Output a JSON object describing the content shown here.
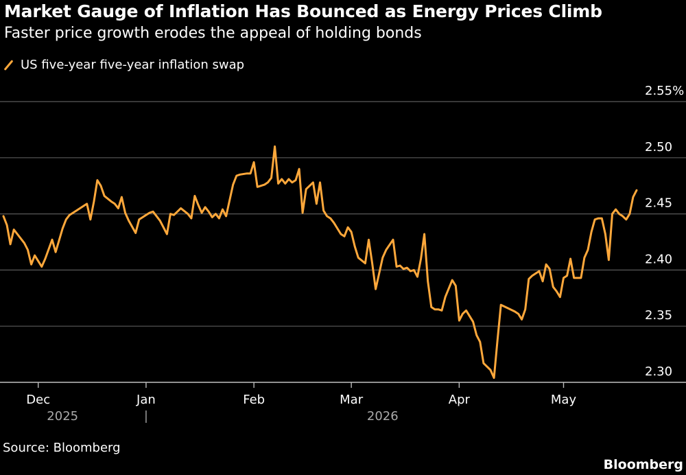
{
  "header": {
    "title": "Market Gauge of Inflation Has Bounced as Energy Prices Climb",
    "subtitle": "Faster price growth erodes the appeal of holding bonds"
  },
  "footer": {
    "source": "Source: Bloomberg",
    "brand": "Bloomberg"
  },
  "chart_data": {
    "type": "line",
    "legend_position": "top-left",
    "grid": true,
    "colors": {
      "line": "#FFA83B",
      "grid": "#5a5a5a",
      "background": "#000000"
    },
    "ylim": [
      2.3,
      2.55
    ],
    "y_ticks": [
      "2.30",
      "2.35",
      "2.40",
      "2.45",
      "2.50",
      "2.55%"
    ],
    "y_tick_values": [
      2.3,
      2.35,
      2.4,
      2.45,
      2.5,
      2.55
    ],
    "x_range": [
      "2025-11-21",
      "2026-05-22"
    ],
    "x_ticks": [
      {
        "label": "Dec",
        "date": "2025-12-01"
      },
      {
        "label": "Jan",
        "date": "2026-01-01"
      },
      {
        "label": "Feb",
        "date": "2026-02-01"
      },
      {
        "label": "Mar",
        "date": "2026-03-01"
      },
      {
        "label": "Apr",
        "date": "2026-04-01"
      },
      {
        "label": "May",
        "date": "2026-05-01"
      }
    ],
    "years": [
      {
        "label": "2025",
        "date": "2025-12-08"
      },
      {
        "label": "2026",
        "date": "2026-03-10"
      }
    ],
    "year_divider_date": "2026-01-01",
    "series": [
      {
        "name": "US five-year five-year inflation swap",
        "points": [
          [
            "2025-11-21",
            2.448
          ],
          [
            "2025-11-22",
            2.44
          ],
          [
            "2025-11-23",
            2.423
          ],
          [
            "2025-11-24",
            2.436
          ],
          [
            "2025-11-27",
            2.424
          ],
          [
            "2025-11-28",
            2.418
          ],
          [
            "2025-11-29",
            2.405
          ],
          [
            "2025-11-30",
            2.413
          ],
          [
            "2025-12-01",
            2.408
          ],
          [
            "2025-12-02",
            2.403
          ],
          [
            "2025-12-03",
            2.41
          ],
          [
            "2025-12-05",
            2.427
          ],
          [
            "2025-12-06",
            2.416
          ],
          [
            "2025-12-08",
            2.437
          ],
          [
            "2025-12-09",
            2.445
          ],
          [
            "2025-12-10",
            2.449
          ],
          [
            "2025-12-12",
            2.453
          ],
          [
            "2025-12-15",
            2.459
          ],
          [
            "2025-12-16",
            2.445
          ],
          [
            "2025-12-17",
            2.461
          ],
          [
            "2025-12-18",
            2.48
          ],
          [
            "2025-12-19",
            2.475
          ],
          [
            "2025-12-20",
            2.466
          ],
          [
            "2025-12-22",
            2.461
          ],
          [
            "2025-12-23",
            2.459
          ],
          [
            "2025-12-24",
            2.455
          ],
          [
            "2025-12-25",
            2.465
          ],
          [
            "2025-12-26",
            2.451
          ],
          [
            "2025-12-27",
            2.444
          ],
          [
            "2025-12-29",
            2.433
          ],
          [
            "2025-12-30",
            2.445
          ],
          [
            "2026-01-02",
            2.451
          ],
          [
            "2026-01-03",
            2.452
          ],
          [
            "2026-01-05",
            2.444
          ],
          [
            "2026-01-07",
            2.432
          ],
          [
            "2026-01-08",
            2.45
          ],
          [
            "2026-01-09",
            2.449
          ],
          [
            "2026-01-10",
            2.452
          ],
          [
            "2026-01-11",
            2.455
          ],
          [
            "2026-01-13",
            2.45
          ],
          [
            "2026-01-14",
            2.446
          ],
          [
            "2026-01-15",
            2.466
          ],
          [
            "2026-01-16",
            2.458
          ],
          [
            "2026-01-17",
            2.451
          ],
          [
            "2026-01-18",
            2.456
          ],
          [
            "2026-01-19",
            2.452
          ],
          [
            "2026-01-20",
            2.447
          ],
          [
            "2026-01-21",
            2.45
          ],
          [
            "2026-01-22",
            2.446
          ],
          [
            "2026-01-23",
            2.454
          ],
          [
            "2026-01-24",
            2.448
          ],
          [
            "2026-01-26",
            2.476
          ],
          [
            "2026-01-27",
            2.484
          ],
          [
            "2026-01-28",
            2.485
          ],
          [
            "2026-01-30",
            2.486
          ],
          [
            "2026-01-31",
            2.486
          ],
          [
            "2026-02-01",
            2.496
          ],
          [
            "2026-02-02",
            2.474
          ],
          [
            "2026-02-03",
            2.475
          ],
          [
            "2026-02-04",
            2.476
          ],
          [
            "2026-02-05",
            2.478
          ],
          [
            "2026-02-06",
            2.482
          ],
          [
            "2026-02-07",
            2.51
          ],
          [
            "2026-02-08",
            2.477
          ],
          [
            "2026-02-09",
            2.481
          ],
          [
            "2026-02-10",
            2.477
          ],
          [
            "2026-02-11",
            2.481
          ],
          [
            "2026-02-12",
            2.478
          ],
          [
            "2026-02-13",
            2.48
          ],
          [
            "2026-02-14",
            2.49
          ],
          [
            "2026-02-15",
            2.451
          ],
          [
            "2026-02-16",
            2.472
          ],
          [
            "2026-02-17",
            2.475
          ],
          [
            "2026-02-18",
            2.478
          ],
          [
            "2026-02-19",
            2.459
          ],
          [
            "2026-02-20",
            2.478
          ],
          [
            "2026-02-21",
            2.453
          ],
          [
            "2026-02-22",
            2.448
          ],
          [
            "2026-02-23",
            2.446
          ],
          [
            "2026-02-24",
            2.442
          ],
          [
            "2026-02-26",
            2.432
          ],
          [
            "2026-02-27",
            2.43
          ],
          [
            "2026-02-28",
            2.438
          ],
          [
            "2026-03-01",
            2.434
          ],
          [
            "2026-03-02",
            2.421
          ],
          [
            "2026-03-03",
            2.411
          ],
          [
            "2026-03-05",
            2.406
          ],
          [
            "2026-03-06",
            2.427
          ],
          [
            "2026-03-07",
            2.406
          ],
          [
            "2026-03-08",
            2.383
          ],
          [
            "2026-03-09",
            2.397
          ],
          [
            "2026-03-10",
            2.411
          ],
          [
            "2026-03-11",
            2.418
          ],
          [
            "2026-03-13",
            2.427
          ],
          [
            "2026-03-14",
            2.403
          ],
          [
            "2026-03-15",
            2.404
          ],
          [
            "2026-03-16",
            2.401
          ],
          [
            "2026-03-17",
            2.402
          ],
          [
            "2026-03-18",
            2.399
          ],
          [
            "2026-03-19",
            2.4
          ],
          [
            "2026-03-20",
            2.394
          ],
          [
            "2026-03-21",
            2.41
          ],
          [
            "2026-03-22",
            2.432
          ],
          [
            "2026-03-23",
            2.39
          ],
          [
            "2026-03-24",
            2.367
          ],
          [
            "2026-03-25",
            2.365
          ],
          [
            "2026-03-26",
            2.365
          ],
          [
            "2026-03-27",
            2.364
          ],
          [
            "2026-03-28",
            2.376
          ],
          [
            "2026-03-30",
            2.391
          ],
          [
            "2026-03-31",
            2.386
          ],
          [
            "2026-04-01",
            2.355
          ],
          [
            "2026-04-02",
            2.361
          ],
          [
            "2026-04-03",
            2.364
          ],
          [
            "2026-04-05",
            2.354
          ],
          [
            "2026-04-06",
            2.342
          ],
          [
            "2026-04-07",
            2.336
          ],
          [
            "2026-04-08",
            2.317
          ],
          [
            "2026-04-10",
            2.311
          ],
          [
            "2026-04-11",
            2.304
          ],
          [
            "2026-04-12",
            2.337
          ],
          [
            "2026-04-13",
            2.369
          ],
          [
            "2026-04-15",
            2.366
          ],
          [
            "2026-04-17",
            2.363
          ],
          [
            "2026-04-18",
            2.361
          ],
          [
            "2026-04-19",
            2.356
          ],
          [
            "2026-04-20",
            2.365
          ],
          [
            "2026-04-21",
            2.392
          ],
          [
            "2026-04-22",
            2.395
          ],
          [
            "2026-04-24",
            2.399
          ],
          [
            "2026-04-25",
            2.39
          ],
          [
            "2026-04-26",
            2.405
          ],
          [
            "2026-04-27",
            2.401
          ],
          [
            "2026-04-28",
            2.385
          ],
          [
            "2026-04-29",
            2.381
          ],
          [
            "2026-04-30",
            2.376
          ],
          [
            "2026-05-01",
            2.393
          ],
          [
            "2026-05-02",
            2.395
          ],
          [
            "2026-05-03",
            2.41
          ],
          [
            "2026-05-04",
            2.393
          ],
          [
            "2026-05-06",
            2.393
          ],
          [
            "2026-05-07",
            2.411
          ],
          [
            "2026-05-08",
            2.418
          ],
          [
            "2026-05-09",
            2.434
          ],
          [
            "2026-05-10",
            2.445
          ],
          [
            "2026-05-11",
            2.446
          ],
          [
            "2026-05-12",
            2.446
          ],
          [
            "2026-05-13",
            2.432
          ],
          [
            "2026-05-14",
            2.409
          ],
          [
            "2026-05-15",
            2.45
          ],
          [
            "2026-05-16",
            2.454
          ],
          [
            "2026-05-17",
            2.45
          ],
          [
            "2026-05-18",
            2.448
          ],
          [
            "2026-05-19",
            2.445
          ],
          [
            "2026-05-20",
            2.45
          ],
          [
            "2026-05-21",
            2.465
          ],
          [
            "2026-05-22",
            2.471
          ]
        ]
      }
    ]
  }
}
